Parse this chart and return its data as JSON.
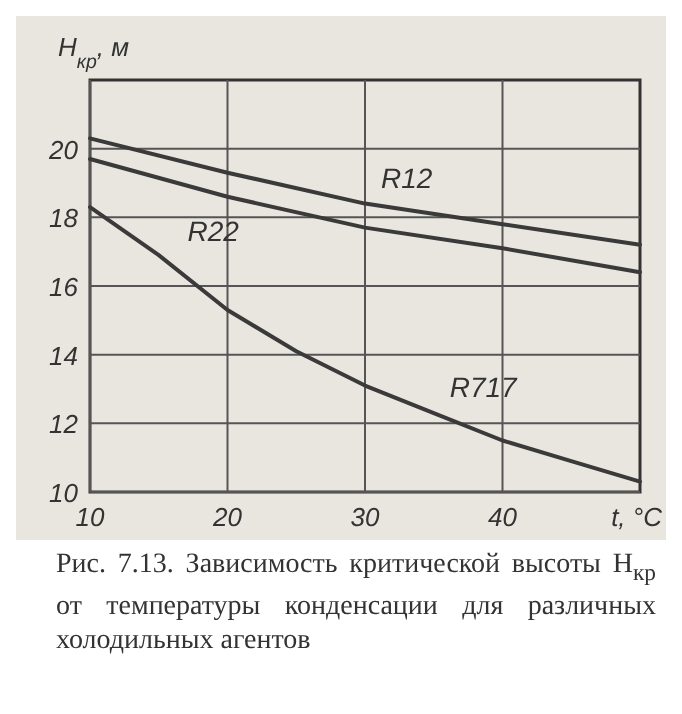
{
  "chart_data": {
    "type": "line",
    "xlabel": "t, °C",
    "ylabel": "H$_{кр}$, м",
    "xlim": [
      10,
      50
    ],
    "ylim": [
      10,
      22
    ],
    "xticks": [
      10,
      20,
      30,
      40
    ],
    "yticks": [
      10,
      12,
      14,
      16,
      18,
      20
    ],
    "grid": true,
    "legend": false,
    "marker": "none",
    "line_style": "solid",
    "x": [
      10,
      20,
      30,
      40,
      50
    ],
    "series": [
      {
        "name": "R12",
        "color": "#3a3a3a",
        "values": [
          20.3,
          19.3,
          18.4,
          17.8,
          17.2
        ]
      },
      {
        "name": "R22",
        "color": "#3a3a3a",
        "values": [
          19.7,
          18.6,
          17.7,
          17.1,
          16.4
        ]
      },
      {
        "name": "R717",
        "color": "#3a3a3a",
        "x": [
          10,
          15,
          20,
          25,
          30,
          35,
          40,
          45,
          50
        ],
        "values": [
          18.3,
          16.9,
          15.3,
          14.1,
          13.1,
          12.3,
          11.5,
          10.9,
          10.3
        ]
      }
    ],
    "annotations": [
      "Рис. 7.13. Зависимость критической высоты H$_{кр}$ от температуры конденсации для различных холодильных агентов"
    ]
  }
}
